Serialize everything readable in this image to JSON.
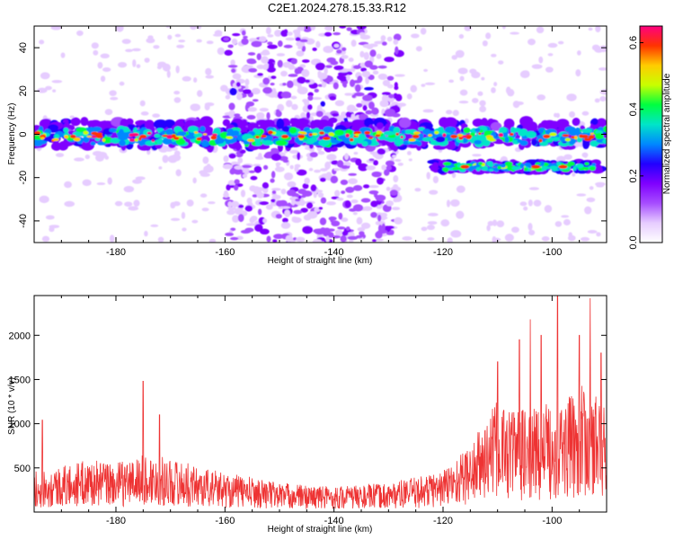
{
  "title": "C2E1.2024.278.15.33.R12",
  "chart_data": [
    {
      "type": "heatmap",
      "xlabel": "Height of straight line (km)",
      "ylabel": "Frequency (Hz)",
      "xlim": [
        -195,
        -90
      ],
      "ylim": [
        -50,
        50
      ],
      "xticks": [
        -180,
        -160,
        -140,
        -120,
        -100
      ],
      "yticks": [
        -40,
        -20,
        0,
        20,
        40
      ],
      "colorbar": {
        "label": "Normalized spectral amplitude",
        "range": [
          0.0,
          0.65
        ],
        "ticks": [
          0.0,
          0.2,
          0.4,
          0.6
        ],
        "colors": [
          "#ffffff",
          "#e6ccff",
          "#a64dff",
          "#7f00ff",
          "#2200ff",
          "#0088ff",
          "#00e5c8",
          "#00ff40",
          "#c8ff00",
          "#ffcc00",
          "#ff3300",
          "#ff0080"
        ]
      },
      "features": [
        {
          "name": "main band",
          "x_range": [
            -195,
            -90
          ],
          "frequency_hz": 0
        },
        {
          "name": "secondary band",
          "x_range": [
            -122,
            -91
          ],
          "frequency_hz": -15
        },
        {
          "name": "diffuse scatter",
          "x_range": [
            -160,
            -128
          ],
          "frequency_range": [
            -50,
            50
          ]
        }
      ]
    },
    {
      "type": "line",
      "xlabel": "Height of straight line (km)",
      "ylabel": "SNR (10 * v/v)",
      "xlim": [
        -195,
        -90
      ],
      "ylim": [
        0,
        2450
      ],
      "xticks": [
        -180,
        -160,
        -140,
        -120,
        -100
      ],
      "yticks": [
        500,
        1000,
        1500,
        2000
      ],
      "line_color": "#ee3333",
      "series_profile": {
        "x": [
          -195,
          -190,
          -185,
          -180,
          -175,
          -170,
          -165,
          -160,
          -155,
          -150,
          -145,
          -140,
          -135,
          -130,
          -125,
          -120,
          -115,
          -112,
          -110,
          -105,
          -100,
          -97,
          -95,
          -92,
          -90
        ],
        "y": [
          260,
          290,
          330,
          310,
          360,
          340,
          290,
          250,
          220,
          190,
          170,
          165,
          170,
          185,
          220,
          270,
          430,
          600,
          700,
          650,
          700,
          720,
          800,
          760,
          650
        ]
      },
      "peaks": [
        {
          "x": -193.5,
          "y": 1040
        },
        {
          "x": -175,
          "y": 1480
        },
        {
          "x": -172,
          "y": 1100
        },
        {
          "x": -110,
          "y": 1700
        },
        {
          "x": -106,
          "y": 1950
        },
        {
          "x": -104,
          "y": 2180
        },
        {
          "x": -102,
          "y": 2000
        },
        {
          "x": -99,
          "y": 2480
        },
        {
          "x": -95,
          "y": 2000
        },
        {
          "x": -93,
          "y": 2420
        },
        {
          "x": -91,
          "y": 1800
        }
      ]
    }
  ]
}
